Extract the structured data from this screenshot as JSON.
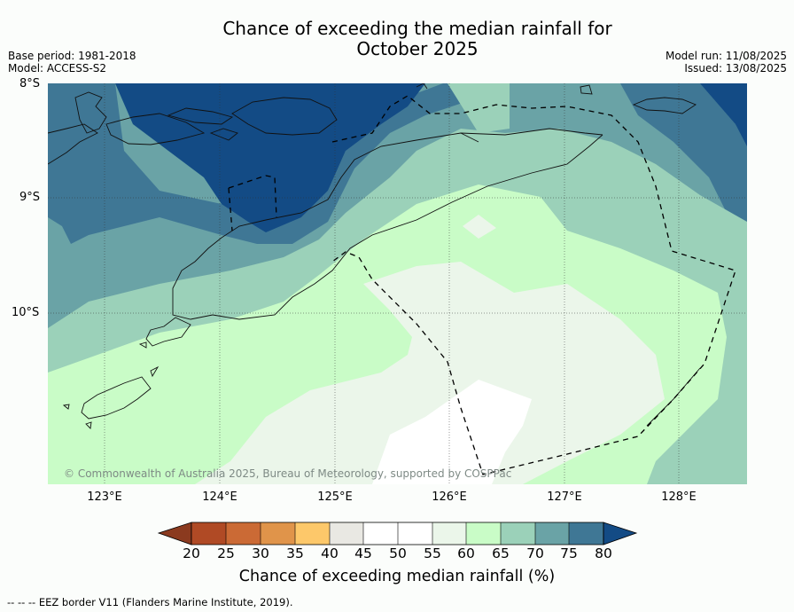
{
  "title_line1": "Chance of exceeding the median rainfall for",
  "title_line2": "October 2025",
  "base_period": "Base period: 1981-2018",
  "model": "Model: ACCESS-S2",
  "model_run": "Model run: 11/08/2025",
  "issued": "Issued: 13/08/2025",
  "lat_labels": [
    "8°S",
    "9°S",
    "10°S"
  ],
  "lon_labels": [
    "123°E",
    "124°E",
    "125°E",
    "126°E",
    "127°E",
    "128°E"
  ],
  "copyright": "© Commonwealth of Australia 2025, Bureau of Meteorology, supported by COSPPac",
  "colorbar": {
    "ticks": [
      "20",
      "25",
      "30",
      "35",
      "40",
      "45",
      "50",
      "55",
      "60",
      "65",
      "70",
      "75",
      "80"
    ],
    "colors": [
      "#8b3a1f",
      "#b04a25",
      "#cb6a35",
      "#e0944a",
      "#fdc86a",
      "#e9e8e3",
      "#ffffff",
      "#ffffff",
      "#ebf6ea",
      "#c9fcc7",
      "#9bd1b9",
      "#6aa3a6",
      "#3f7795",
      "#134b85"
    ],
    "label": "Chance of exceeding median rainfall (%)"
  },
  "footer": "--  --  -- EEZ border V11 (Flanders Marine Institute, 2019)."
}
